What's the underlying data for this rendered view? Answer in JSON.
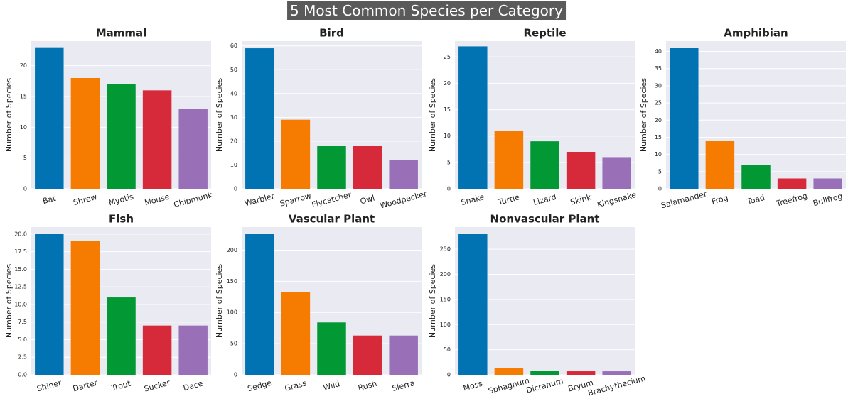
{
  "title": "5 Most Common Species per Category",
  "chart_data": [
    {
      "type": "bar",
      "title": "Mammal",
      "ylabel": "Number of Species",
      "categories": [
        "Bat",
        "Shrew",
        "Myotis",
        "Mouse",
        "Chipmunk"
      ],
      "values": [
        23,
        18,
        17,
        16,
        13
      ],
      "colors": [
        "#0173b2",
        "#f57c00",
        "#029833",
        "#d62a3a",
        "#9970b8"
      ],
      "ylim": [
        0,
        24
      ],
      "yticks": [
        0,
        5,
        10,
        15,
        20
      ],
      "grid": true
    },
    {
      "type": "bar",
      "title": "Bird",
      "ylabel": "Number of Species",
      "categories": [
        "Warbler",
        "Sparrow",
        "Flycatcher",
        "Owl",
        "Woodpecker"
      ],
      "values": [
        59,
        29,
        18,
        18,
        12
      ],
      "colors": [
        "#0173b2",
        "#f57c00",
        "#029833",
        "#d62a3a",
        "#9970b8"
      ],
      "ylim": [
        0,
        62
      ],
      "yticks": [
        0,
        10,
        20,
        30,
        40,
        50,
        60
      ],
      "grid": true
    },
    {
      "type": "bar",
      "title": "Reptile",
      "ylabel": "Number of Species",
      "categories": [
        "Snake",
        "Turtle",
        "Lizard",
        "Skink",
        "Kingsnake"
      ],
      "values": [
        27,
        11,
        9,
        7,
        6
      ],
      "colors": [
        "#0173b2",
        "#f57c00",
        "#029833",
        "#d62a3a",
        "#9970b8"
      ],
      "ylim": [
        0,
        28
      ],
      "yticks": [
        0,
        5,
        10,
        15,
        20,
        25
      ],
      "grid": true
    },
    {
      "type": "bar",
      "title": "Amphibian",
      "ylabel": "Number of Species",
      "categories": [
        "Salamander",
        "Frog",
        "Toad",
        "Treefrog",
        "Bullfrog"
      ],
      "values": [
        41,
        14,
        7,
        3,
        3
      ],
      "colors": [
        "#0173b2",
        "#f57c00",
        "#029833",
        "#d62a3a",
        "#9970b8"
      ],
      "ylim": [
        0,
        43
      ],
      "yticks": [
        0,
        5,
        10,
        15,
        20,
        25,
        30,
        35,
        40
      ],
      "grid": true
    },
    {
      "type": "bar",
      "title": "Fish",
      "ylabel": "Number of Species",
      "categories": [
        "Shiner",
        "Darter",
        "Trout",
        "Sucker",
        "Dace"
      ],
      "values": [
        20,
        19,
        11,
        7,
        7
      ],
      "colors": [
        "#0173b2",
        "#f57c00",
        "#029833",
        "#d62a3a",
        "#9970b8"
      ],
      "ylim": [
        0,
        21
      ],
      "yticks": [
        {
          "value": 0,
          "label": "0.0"
        },
        2.5,
        {
          "value": 5,
          "label": "5.0"
        },
        7.5,
        {
          "value": 10,
          "label": "10.0"
        },
        12.5,
        {
          "value": 15,
          "label": "15.0"
        },
        17.5,
        {
          "value": 20,
          "label": "20.0"
        }
      ],
      "grid": true
    },
    {
      "type": "bar",
      "title": "Vascular Plant",
      "ylabel": "Number of Species",
      "categories": [
        "Sedge",
        "Grass",
        "Wild",
        "Rush",
        "Sierra"
      ],
      "values": [
        226,
        133,
        84,
        63,
        63
      ],
      "colors": [
        "#0173b2",
        "#f57c00",
        "#029833",
        "#d62a3a",
        "#9970b8"
      ],
      "ylim": [
        0,
        237
      ],
      "yticks": [
        0,
        50,
        100,
        150,
        200
      ],
      "grid": true
    },
    {
      "type": "bar",
      "title": "Nonvascular Plant",
      "ylabel": "Number of Species",
      "categories": [
        "Moss",
        "Sphagnum",
        "Dicranum",
        "Bryum",
        "Brachythecium"
      ],
      "values": [
        280,
        13,
        8,
        7,
        7
      ],
      "colors": [
        "#0173b2",
        "#f57c00",
        "#029833",
        "#d62a3a",
        "#9970b8"
      ],
      "ylim": [
        0,
        294
      ],
      "yticks": [
        0,
        50,
        100,
        150,
        200,
        250
      ],
      "grid": true
    }
  ]
}
